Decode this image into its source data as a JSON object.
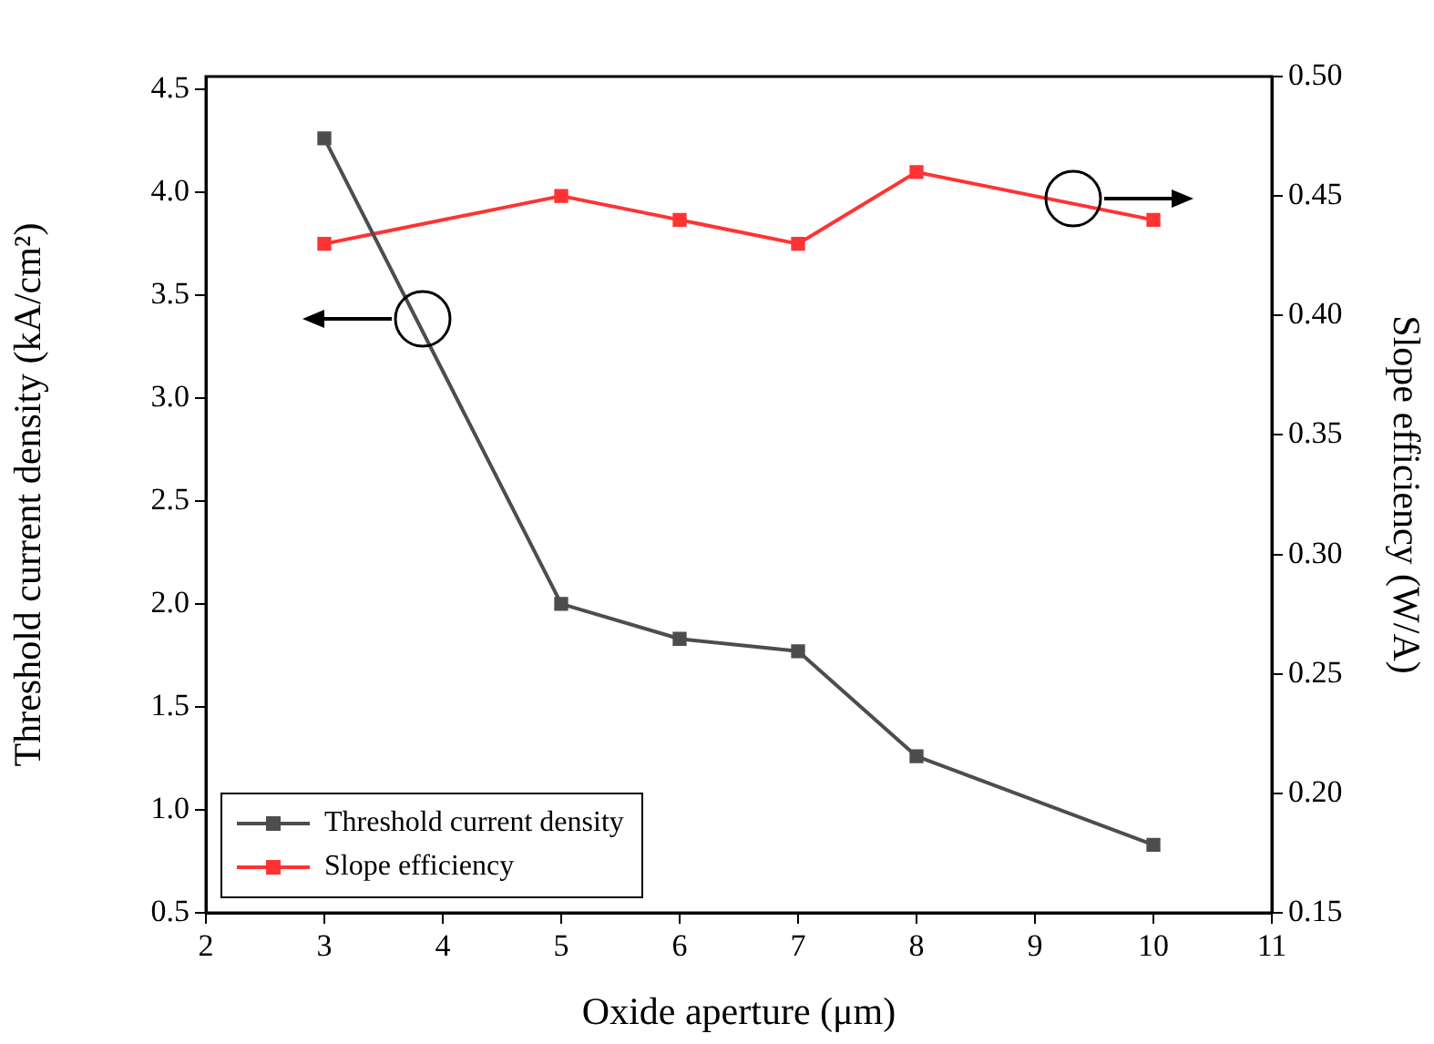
{
  "chart_data": {
    "type": "line",
    "xlabel": "Oxide aperture (μm)",
    "ylabel": "Threshold current density (kA/cm²)",
    "y2label": "Slope efficiency (W/A)",
    "x": [
      3,
      5,
      6,
      7,
      8,
      10
    ],
    "series": [
      {
        "name": "Threshold current density",
        "color": "#4d4d4d",
        "values": [
          4.26,
          2.0,
          1.83,
          1.77,
          1.26,
          0.83
        ]
      },
      {
        "name": "Slope efficiency",
        "color": "#ff3333",
        "values": [
          0.43,
          0.45,
          0.44,
          0.43,
          0.46,
          0.44
        ],
        "axis": "y2"
      }
    ],
    "xlim": [
      2,
      11
    ],
    "xticks": [
      2,
      3,
      4,
      5,
      6,
      7,
      8,
      9,
      10,
      11
    ],
    "ylim": [
      0.5,
      4.56
    ],
    "yticks": [
      {
        "value": 0.5,
        "label": "0.5"
      },
      {
        "value": 1,
        "label": "1.0"
      },
      1.5,
      {
        "value": 2,
        "label": "2.0"
      },
      2.5,
      {
        "value": 3,
        "label": "3.0"
      },
      3.5,
      {
        "value": 4,
        "label": "4.0"
      },
      4.5
    ],
    "y2lim": [
      0.15,
      0.5
    ],
    "y2ticks": [
      {
        "value": 0.15,
        "label": "0.15"
      },
      {
        "value": 0.2,
        "label": "0.20"
      },
      {
        "value": 0.25,
        "label": "0.25"
      },
      {
        "value": 0.3,
        "label": "0.30"
      },
      {
        "value": 0.35,
        "label": "0.35"
      },
      {
        "value": 0.4,
        "label": "0.40"
      },
      {
        "value": 0.45,
        "label": "0.45"
      },
      {
        "value": 0.5,
        "label": "0.50"
      }
    ],
    "grid": false,
    "legend": "bottom left",
    "marker": "square",
    "line_style": "solid"
  }
}
